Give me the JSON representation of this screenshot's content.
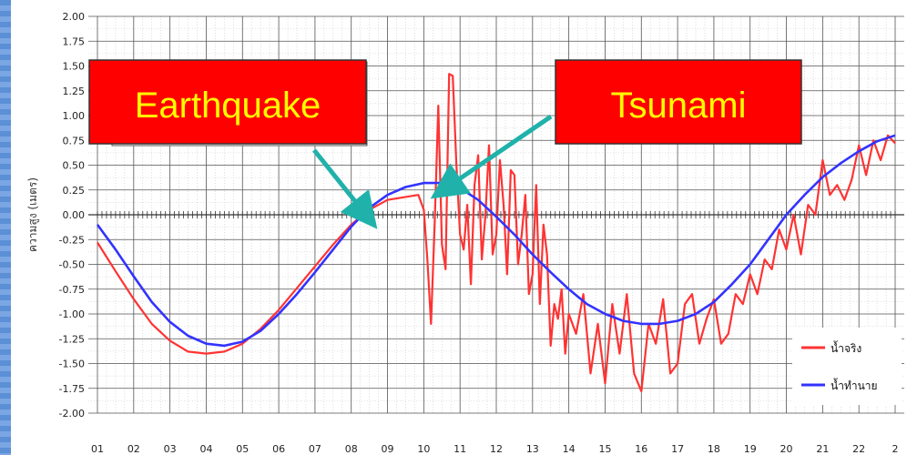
{
  "chart_data": {
    "type": "line",
    "ylabel": "ความสูง (เมตร)",
    "xlabel": "",
    "title": "",
    "ylim": [
      -2.0,
      2.0
    ],
    "y_ticks": [
      "2.00",
      "1.75",
      "1.50",
      "1.25",
      "1.00",
      "0.75",
      "0.50",
      "0.25",
      "0.00",
      "-0.25",
      "-0.50",
      "-0.75",
      "-1.00",
      "-1.25",
      "-1.50",
      "-1.75",
      "-2.00"
    ],
    "x_ticks": [
      "01",
      "02",
      "03",
      "04",
      "05",
      "06",
      "07",
      "08",
      "09",
      "10",
      "11",
      "12",
      "13",
      "14",
      "15",
      "16",
      "17",
      "18",
      "19",
      "20",
      "21",
      "22",
      "2"
    ],
    "grid": true,
    "legend_position": "bottom-right",
    "series": [
      {
        "name": "น้ำจริง",
        "color": "#ff3333",
        "x": [
          1.0,
          1.5,
          2.0,
          2.5,
          3.0,
          3.5,
          4.0,
          4.5,
          5.0,
          5.5,
          6.0,
          6.5,
          7.0,
          7.5,
          8.0,
          8.5,
          9.0,
          9.5,
          9.85,
          10.0,
          10.1,
          10.2,
          10.3,
          10.4,
          10.5,
          10.6,
          10.7,
          10.8,
          10.9,
          11.0,
          11.1,
          11.2,
          11.3,
          11.4,
          11.5,
          11.6,
          11.7,
          11.8,
          11.9,
          12.0,
          12.1,
          12.2,
          12.3,
          12.4,
          12.5,
          12.6,
          12.7,
          12.8,
          12.9,
          13.0,
          13.1,
          13.2,
          13.3,
          13.4,
          13.5,
          13.6,
          13.7,
          13.8,
          13.9,
          14.0,
          14.2,
          14.4,
          14.6,
          14.8,
          15.0,
          15.2,
          15.4,
          15.6,
          15.8,
          16.0,
          16.2,
          16.4,
          16.6,
          16.8,
          17.0,
          17.2,
          17.4,
          17.6,
          17.8,
          18.0,
          18.2,
          18.4,
          18.6,
          18.8,
          19.0,
          19.2,
          19.4,
          19.6,
          19.8,
          20.0,
          20.2,
          20.4,
          20.6,
          20.8,
          21.0,
          21.2,
          21.4,
          21.6,
          21.8,
          22.0,
          22.2,
          22.4,
          22.6,
          22.8,
          23.0
        ],
        "values": [
          -0.28,
          -0.57,
          -0.85,
          -1.1,
          -1.27,
          -1.38,
          -1.4,
          -1.38,
          -1.3,
          -1.15,
          -0.96,
          -0.74,
          -0.52,
          -0.3,
          -0.1,
          0.05,
          0.15,
          0.18,
          0.2,
          0.05,
          -0.45,
          -1.1,
          -0.1,
          1.1,
          -0.3,
          -0.55,
          1.42,
          1.4,
          0.5,
          -0.2,
          -0.35,
          0.1,
          -0.7,
          0.3,
          0.6,
          -0.45,
          0.0,
          0.7,
          -0.4,
          -0.2,
          0.55,
          0.1,
          -0.6,
          0.45,
          0.4,
          -0.5,
          -0.2,
          0.2,
          -0.8,
          -0.6,
          0.3,
          -0.9,
          -0.1,
          -0.4,
          -1.32,
          -0.9,
          -1.05,
          -0.75,
          -1.4,
          -1.0,
          -1.2,
          -0.8,
          -1.6,
          -1.1,
          -1.7,
          -0.9,
          -1.4,
          -0.8,
          -1.6,
          -1.78,
          -1.1,
          -1.3,
          -0.85,
          -1.6,
          -1.5,
          -0.9,
          -0.8,
          -1.3,
          -1.05,
          -0.85,
          -1.3,
          -1.2,
          -0.8,
          -0.9,
          -0.6,
          -0.8,
          -0.45,
          -0.55,
          -0.15,
          -0.35,
          0.0,
          -0.4,
          0.1,
          0.0,
          0.55,
          0.2,
          0.3,
          0.15,
          0.35,
          0.7,
          0.4,
          0.75,
          0.55,
          0.8,
          0.72
        ]
      },
      {
        "name": "น้ำทำนาย",
        "color": "#3333ff",
        "x": [
          1.0,
          1.5,
          2.0,
          2.5,
          3.0,
          3.5,
          4.0,
          4.5,
          5.0,
          5.5,
          6.0,
          6.5,
          7.0,
          7.5,
          8.0,
          8.5,
          9.0,
          9.5,
          10.0,
          10.5,
          11.0,
          11.5,
          12.0,
          12.5,
          13.0,
          13.5,
          14.0,
          14.5,
          15.0,
          15.5,
          16.0,
          16.5,
          17.0,
          17.5,
          18.0,
          18.5,
          19.0,
          19.5,
          20.0,
          20.5,
          21.0,
          21.5,
          22.0,
          22.5,
          23.0
        ],
        "values": [
          -0.1,
          -0.35,
          -0.62,
          -0.88,
          -1.08,
          -1.22,
          -1.3,
          -1.32,
          -1.28,
          -1.17,
          -1.0,
          -0.8,
          -0.58,
          -0.35,
          -0.12,
          0.07,
          0.2,
          0.28,
          0.32,
          0.32,
          0.27,
          0.15,
          -0.02,
          -0.2,
          -0.4,
          -0.58,
          -0.75,
          -0.9,
          -1.0,
          -1.07,
          -1.1,
          -1.1,
          -1.07,
          -1.0,
          -0.88,
          -0.7,
          -0.5,
          -0.25,
          0.0,
          0.2,
          0.38,
          0.52,
          0.64,
          0.74,
          0.8
        ]
      }
    ]
  },
  "annotations": {
    "earthquake": "Earthquake",
    "tsunami": "Tsunami"
  }
}
